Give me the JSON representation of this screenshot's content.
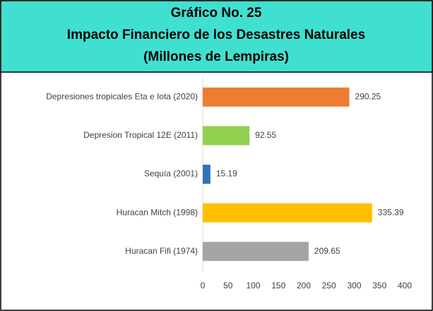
{
  "chart_data": {
    "type": "barh",
    "title_lines": [
      "Gráfico No. 25",
      "Impacto Financiero de los Desastres Naturales",
      "(Millones de Lempiras)"
    ],
    "categories": [
      "Depresiones tropicales Eta e Iota (2020)",
      "Depresion Tropical 12E (2011)",
      "Sequía (2001)",
      "Huracan Mitch (1998)",
      "Huracan Fifi (1974)"
    ],
    "values": [
      290.25,
      92.55,
      15.19,
      335.39,
      209.65
    ],
    "colors": [
      "#ED7D31",
      "#92D050",
      "#2E75B6",
      "#FFC000",
      "#A5A5A5"
    ],
    "xlim": [
      0,
      400
    ],
    "xticks": [
      0,
      50,
      100,
      150,
      200,
      250,
      300,
      350,
      400
    ],
    "grid": false
  }
}
